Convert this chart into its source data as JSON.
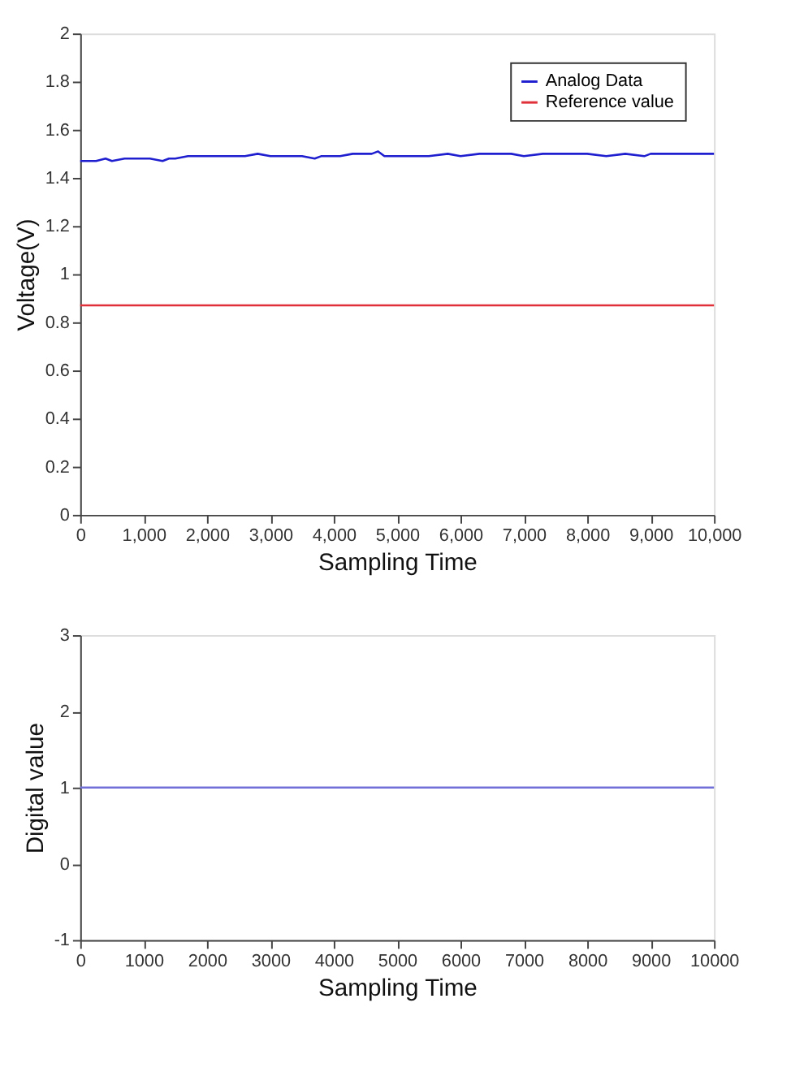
{
  "chart_data": [
    {
      "type": "line",
      "xlabel": "Sampling Time",
      "ylabel": "Voltage(V)",
      "xlim": [
        0,
        10000
      ],
      "ylim": [
        0,
        2
      ],
      "xticks": [
        0,
        {
          "value": 1000,
          "label": "1,000"
        },
        {
          "value": 2000,
          "label": "2,000"
        },
        {
          "value": 3000,
          "label": "3,000"
        },
        {
          "value": 4000,
          "label": "4,000"
        },
        {
          "value": 5000,
          "label": "5,000"
        },
        {
          "value": 6000,
          "label": "6,000"
        },
        {
          "value": 7000,
          "label": "7,000"
        },
        {
          "value": 8000,
          "label": "8,000"
        },
        {
          "value": 9000,
          "label": "9,000"
        },
        {
          "value": 10000,
          "label": "10,000"
        }
      ],
      "yticks": [
        0,
        0.2,
        0.4,
        0.6,
        0.8,
        1,
        1.2,
        1.4,
        1.6,
        1.8,
        2
      ],
      "grid": false,
      "legend": "top right",
      "line_style": "solid",
      "series": [
        {
          "name": "Analog Data",
          "color": "#1f1fd0",
          "x": [
            0,
            250,
            400,
            500,
            700,
            900,
            1100,
            1300,
            1400,
            1500,
            1700,
            2000,
            2300,
            2600,
            2800,
            3000,
            3300,
            3500,
            3700,
            3800,
            3900,
            4100,
            4300,
            4500,
            4600,
            4700,
            4800,
            5000,
            5300,
            5500,
            5800,
            6000,
            6300,
            6500,
            6800,
            7000,
            7300,
            7600,
            8000,
            8300,
            8600,
            8900,
            9000,
            9200,
            9500,
            9700,
            10000
          ],
          "values": [
            1.47,
            1.47,
            1.48,
            1.47,
            1.48,
            1.48,
            1.48,
            1.47,
            1.48,
            1.48,
            1.49,
            1.49,
            1.49,
            1.49,
            1.5,
            1.49,
            1.49,
            1.49,
            1.48,
            1.49,
            1.49,
            1.49,
            1.5,
            1.5,
            1.5,
            1.51,
            1.49,
            1.49,
            1.49,
            1.49,
            1.5,
            1.49,
            1.5,
            1.5,
            1.5,
            1.49,
            1.5,
            1.5,
            1.5,
            1.49,
            1.5,
            1.49,
            1.5,
            1.5,
            1.5,
            1.5,
            1.5
          ]
        },
        {
          "name": "Reference value",
          "color": "#e0303a",
          "x": [
            0,
            10000
          ],
          "values": [
            0.87,
            0.87
          ]
        }
      ]
    },
    {
      "type": "line",
      "xlabel": "Sampling Time",
      "ylabel": "Digital value",
      "xlim": [
        0,
        10000
      ],
      "ylim": [
        -1,
        3
      ],
      "xticks": [
        0,
        1000,
        2000,
        3000,
        4000,
        5000,
        6000,
        7000,
        8000,
        9000,
        10000
      ],
      "yticks": [
        -1,
        0,
        1,
        2,
        3
      ],
      "grid": false,
      "line_style": "solid",
      "series": [
        {
          "color": "#7070d8",
          "x": [
            0,
            10000
          ],
          "values": [
            1,
            1
          ]
        }
      ]
    }
  ]
}
